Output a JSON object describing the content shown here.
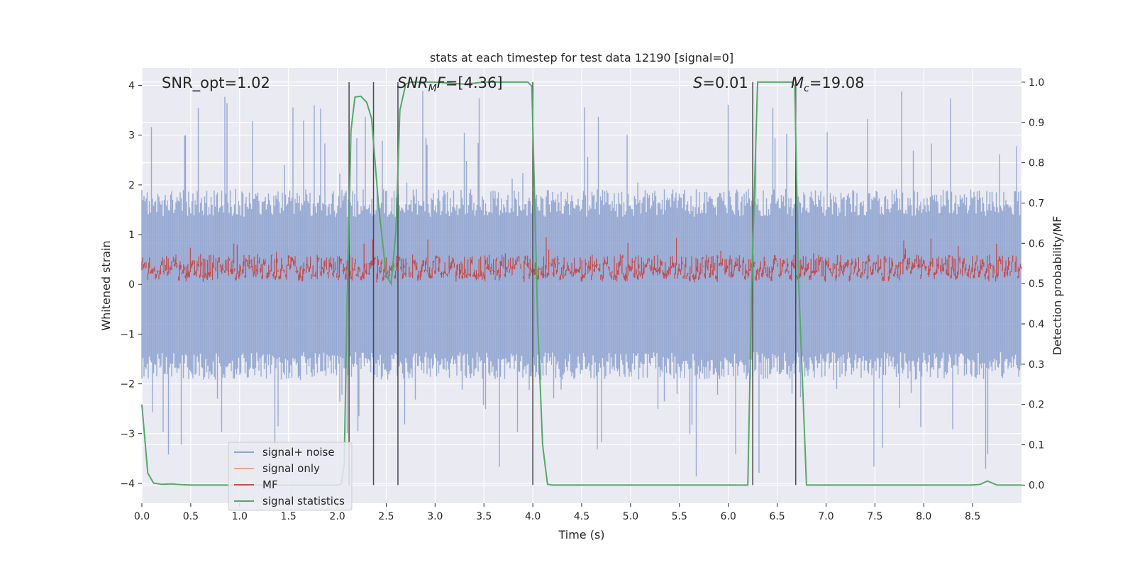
{
  "chart_data": {
    "type": "line",
    "title": "stats at each timestep for test data 12190 [signal=0]",
    "xlabel": "Time (s)",
    "ylabel": "Whitened strain",
    "y2label": "Detection probability/MF",
    "xlim": [
      0.0,
      9.0
    ],
    "ylim": [
      -4.4,
      4.35
    ],
    "y2lim": [
      -0.045,
      1.035
    ],
    "xticks": [
      0.0,
      0.5,
      1.0,
      1.5,
      2.0,
      2.5,
      3.0,
      3.5,
      4.0,
      4.5,
      5.0,
      5.5,
      6.0,
      6.5,
      7.0,
      7.5,
      8.0,
      8.5
    ],
    "xtick_labels": [
      "0.0",
      "0.5",
      "1.0",
      "1.5",
      "2.0",
      "2.5",
      "3.0",
      "3.5",
      "4.0",
      "4.5",
      "5.0",
      "5.5",
      "6.0",
      "6.5",
      "7.0",
      "7.5",
      "8.0",
      "8.5"
    ],
    "yticks": [
      -4,
      -3,
      -2,
      -1,
      0,
      1,
      2,
      3,
      4
    ],
    "ytick_labels": [
      "−4",
      "−3",
      "−2",
      "−1",
      "0",
      "1",
      "2",
      "3",
      "4"
    ],
    "y2ticks": [
      0.0,
      0.1,
      0.2,
      0.3,
      0.4,
      0.5,
      0.6,
      0.7,
      0.8,
      0.9,
      1.0
    ],
    "y2tick_labels": [
      "0.0",
      "0.1",
      "0.2",
      "0.3",
      "0.4",
      "0.5",
      "0.6",
      "0.7",
      "0.8",
      "0.9",
      "1.0"
    ],
    "grid": true,
    "legend_position": "bottom-left",
    "annotations": {
      "snr_opt": "SNR_opt=1.02",
      "snr_mf_italic": "SNR",
      "snr_mf_sub": "M",
      "snr_mf_tail": "F",
      "snr_mf_value": "=[4.36]",
      "s_symbol": "S",
      "s_value": "=0.01",
      "mc_symbol": "M",
      "mc_sub": "c",
      "mc_value": "=19.08"
    },
    "series": [
      {
        "name": "signal+ noise",
        "axis": "left",
        "color": "#8ea3cf",
        "style": "dense-noise",
        "envelope_typical": [
          -1.6,
          1.6
        ],
        "envelope_peak": [
          -3.9,
          3.9
        ]
      },
      {
        "name": "signal only",
        "axis": "left",
        "color": "#eea58a",
        "style": "line",
        "values": []
      },
      {
        "name": "MF",
        "axis": "left",
        "color": "#c44e52",
        "style": "dense-noise-positive",
        "baseline": 0.0,
        "typical_peak": 0.6,
        "max_peak": 1.0
      },
      {
        "name": "signal statistics",
        "axis": "right",
        "color": "#55a868",
        "style": "line",
        "x": [
          0.0,
          0.06,
          0.12,
          0.2,
          0.3,
          0.4,
          0.5,
          1.0,
          1.5,
          2.0,
          2.04,
          2.07,
          2.1,
          2.14,
          2.18,
          2.24,
          2.3,
          2.35,
          2.42,
          2.5,
          2.55,
          2.6,
          2.64,
          2.7,
          2.75,
          3.0,
          3.3,
          3.5,
          3.75,
          3.95,
          3.99,
          4.05,
          4.1,
          4.15,
          4.2,
          4.5,
          5.0,
          5.5,
          6.0,
          6.2,
          6.24,
          6.3,
          6.5,
          6.65,
          6.68,
          6.72,
          6.8,
          6.85,
          7.0,
          7.5,
          8.0,
          8.5,
          8.58,
          8.65,
          8.75,
          9.0
        ],
        "values": [
          0.2,
          0.03,
          0.005,
          0.002,
          0.003,
          0.001,
          0.0,
          0.0,
          0.0,
          0.0,
          0.003,
          0.05,
          0.45,
          0.88,
          0.963,
          0.965,
          0.95,
          0.91,
          0.7,
          0.52,
          0.5,
          0.63,
          0.93,
          0.995,
          1.0,
          1.0,
          0.995,
          1.0,
          1.0,
          1.0,
          0.99,
          0.4,
          0.1,
          0.002,
          0.0,
          0.0,
          0.0,
          0.0,
          0.0,
          0.0,
          0.5,
          1.0,
          1.0,
          1.0,
          0.99,
          0.5,
          0.0,
          0.0,
          0.0,
          0.0,
          0.0,
          0.0,
          0.002,
          0.01,
          0.0,
          0.0
        ]
      }
    ],
    "vertical_lines_x": [
      2.12,
      2.37,
      2.62,
      4.0,
      6.25,
      6.69
    ]
  }
}
